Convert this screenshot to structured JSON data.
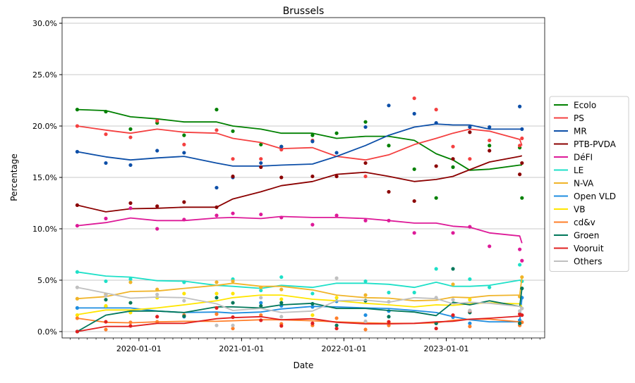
{
  "chart_data": {
    "type": "line",
    "title": "Brussels",
    "xlabel": "Date",
    "ylabel": "Percentage",
    "xlim": [
      "2019-04-02",
      "2023-12-18"
    ],
    "ylim": [
      -0.62,
      30.55
    ],
    "yticks": [
      0,
      5,
      10,
      15,
      20,
      25,
      30
    ],
    "ytick_labels": [
      "0.0%",
      "5.0%",
      "10.0%",
      "15.0%",
      "20.0%",
      "25.0%",
      "30.0%"
    ],
    "xticks": [
      "2020-01-01",
      "2021-01-01",
      "2022-01-01",
      "2023-01-01"
    ],
    "xtick_labels": [
      "2020-01-01",
      "2021-01-01",
      "2022-01-01",
      "2023-01-01"
    ],
    "grid": "horizontal",
    "legend_position": "right",
    "dates": [
      "2019-05-26",
      "2019-09-05",
      "2019-12-02",
      "2020-03-06",
      "2020-06-10",
      "2020-10-04",
      "2020-12-01",
      "2021-03-11",
      "2021-05-23",
      "2021-09-11",
      "2021-12-06",
      "2022-03-19",
      "2022-06-10",
      "2022-09-09",
      "2022-11-26",
      "2023-01-25",
      "2023-03-26",
      "2023-06-04",
      "2023-09-20",
      "2023-09-28"
    ],
    "series": [
      {
        "name": "Ecolo",
        "color": "#008000",
        "trend": [
          21.6,
          21.5,
          20.9,
          20.7,
          20.4,
          20.4,
          20.0,
          19.7,
          19.3,
          19.3,
          18.8,
          19.0,
          19.0,
          18.6,
          17.3,
          16.7,
          15.7,
          15.8,
          16.2,
          16.2
        ],
        "polls": [
          21.6,
          21.4,
          19.7,
          20.3,
          19.1,
          21.6,
          19.5,
          18.2,
          18.0,
          19.1,
          19.3,
          20.4,
          18.1,
          15.8,
          13.0,
          16.0,
          null,
          18.1,
          17.9,
          13.0
        ]
      },
      {
        "name": "PS",
        "color": "#f44040",
        "trend": [
          20.0,
          19.6,
          19.3,
          19.7,
          19.4,
          19.3,
          18.8,
          18.4,
          17.8,
          17.9,
          17.05,
          16.7,
          17.2,
          18.2,
          18.8,
          19.3,
          19.7,
          19.5,
          18.7,
          18.1
        ],
        "polls": [
          20.0,
          19.2,
          18.9,
          20.5,
          18.2,
          19.6,
          16.8,
          16.8,
          17.7,
          18.6,
          null,
          15.1,
          null,
          22.7,
          21.6,
          18.0,
          16.8,
          18.6,
          18.1,
          18.8
        ]
      },
      {
        "name": "MR",
        "color": "#0d4fa8",
        "trend": [
          17.5,
          17.0,
          16.7,
          16.9,
          17.05,
          16.4,
          16.1,
          16.1,
          16.2,
          16.3,
          17.05,
          18.1,
          19.1,
          19.9,
          20.2,
          20.1,
          20.1,
          19.7,
          19.7,
          19.7
        ],
        "polls": [
          17.5,
          16.4,
          16.2,
          17.6,
          17.4,
          14.0,
          15.0,
          16.4,
          18.0,
          18.5,
          17.4,
          19.9,
          22.0,
          21.2,
          20.3,
          null,
          19.9,
          19.9,
          21.9,
          19.7
        ]
      },
      {
        "name": "PTB-PVDA",
        "color": "#8b0000",
        "trend": [
          12.3,
          11.65,
          11.95,
          12.0,
          12.1,
          12.1,
          12.9,
          13.6,
          14.2,
          14.6,
          15.3,
          15.5,
          15.1,
          14.6,
          14.8,
          15.1,
          15.75,
          16.5,
          17.05,
          17.1
        ],
        "polls": [
          12.3,
          null,
          12.5,
          12.2,
          12.6,
          12.1,
          15.1,
          16.0,
          15.0,
          15.1,
          15.1,
          16.4,
          13.6,
          12.7,
          16.1,
          16.8,
          19.4,
          17.6,
          15.3,
          16.4
        ]
      },
      {
        "name": "DéFI",
        "color": "#dd1a98",
        "trend": [
          10.3,
          10.6,
          11.05,
          10.8,
          10.8,
          11.05,
          11.1,
          11.0,
          11.2,
          11.1,
          11.1,
          11.0,
          10.8,
          10.55,
          10.55,
          10.25,
          10.15,
          9.6,
          9.3,
          8.6
        ],
        "polls": [
          10.3,
          11.0,
          12.0,
          10.0,
          10.9,
          11.3,
          11.5,
          11.4,
          11.1,
          10.4,
          11.3,
          10.8,
          10.8,
          9.6,
          null,
          9.6,
          10.2,
          8.3,
          8.0,
          6.9
        ]
      },
      {
        "name": "LE",
        "color": "#1ee0c8",
        "trend": [
          5.8,
          5.4,
          5.3,
          4.95,
          4.9,
          4.5,
          4.4,
          4.2,
          4.5,
          4.3,
          4.7,
          4.7,
          4.6,
          4.3,
          4.8,
          4.4,
          4.4,
          4.5,
          5.0,
          5.0
        ],
        "polls": [
          5.8,
          4.9,
          5.1,
          null,
          4.8,
          null,
          5.1,
          4.0,
          5.3,
          3.7,
          null,
          4.9,
          3.8,
          3.8,
          6.1,
          null,
          5.1,
          4.3,
          6.5,
          4.9
        ]
      },
      {
        "name": "N-VA",
        "color": "#f0b429",
        "trend": [
          3.2,
          3.4,
          3.9,
          3.95,
          4.2,
          4.5,
          4.7,
          4.4,
          4.4,
          4.05,
          3.55,
          3.3,
          3.25,
          3.0,
          3.05,
          3.35,
          3.3,
          3.5,
          3.55,
          5.3
        ],
        "polls": [
          3.2,
          3.6,
          4.8,
          4.1,
          null,
          4.8,
          4.9,
          4.3,
          4.1,
          null,
          null,
          3.55,
          null,
          null,
          null,
          4.6,
          null,
          null,
          3.4,
          5.3
        ]
      },
      {
        "name": "Open VLD",
        "color": "#1f8ee0",
        "trend": [
          2.3,
          2.3,
          2.3,
          2.0,
          1.85,
          1.9,
          1.8,
          1.9,
          2.2,
          2.45,
          2.4,
          2.3,
          2.25,
          2.05,
          1.85,
          1.45,
          1.15,
          0.95,
          0.95,
          3.3
        ],
        "polls": [
          2.3,
          2.45,
          null,
          null,
          1.45,
          null,
          null,
          2.8,
          2.5,
          2.4,
          2.95,
          1.6,
          2.0,
          null,
          null,
          1.4,
          0.8,
          null,
          1.1,
          3.3
        ]
      },
      {
        "name": "VB",
        "color": "#ffe500",
        "trend": [
          1.65,
          2.1,
          2.1,
          2.3,
          2.6,
          3.0,
          3.3,
          3.55,
          3.55,
          3.15,
          3.0,
          2.75,
          2.6,
          2.4,
          2.6,
          2.55,
          2.7,
          2.8,
          2.7,
          2.4
        ],
        "polls": [
          1.6,
          2.5,
          1.85,
          3.3,
          3.7,
          3.7,
          3.7,
          null,
          3.15,
          1.6,
          3.3,
          null,
          null,
          null,
          null,
          null,
          3.1,
          null,
          null,
          null
        ]
      },
      {
        "name": "cd&v",
        "color": "#ff7f2a",
        "trend": [
          1.3,
          0.9,
          0.85,
          0.95,
          1.0,
          1.0,
          1.05,
          1.15,
          1.15,
          1.05,
          0.95,
          0.85,
          0.8,
          0.8,
          0.85,
          1.1,
          1.2,
          1.2,
          0.95,
          0.85
        ],
        "polls": [
          1.3,
          0.2,
          0.9,
          0.95,
          1.6,
          1.7,
          0.3,
          1.6,
          0.75,
          0.6,
          1.3,
          0.2,
          0.6,
          null,
          0.8,
          null,
          0.5,
          null,
          0.6,
          0.9
        ]
      },
      {
        "name": "Groen",
        "color": "#00775a",
        "trend": [
          0,
          1.6,
          2.0,
          2.0,
          1.85,
          2.4,
          2.4,
          2.3,
          2.6,
          2.75,
          2.25,
          2.25,
          2.05,
          1.9,
          1.55,
          2.85,
          2.6,
          3.0,
          2.45,
          4.2
        ],
        "polls": [
          0,
          3.1,
          2.8,
          null,
          1.5,
          3.3,
          2.8,
          2.5,
          2.8,
          2.7,
          0.6,
          3.0,
          1.45,
          null,
          0.8,
          6.1,
          1.85,
          null,
          0.8,
          4.2
        ]
      },
      {
        "name": "Vooruit",
        "color": "#e02020",
        "trend": [
          0,
          0.5,
          0.5,
          0.8,
          0.8,
          1.25,
          1.35,
          1.45,
          1.15,
          1.25,
          0.9,
          0.75,
          0.75,
          0.8,
          0.95,
          1.0,
          1.2,
          1.3,
          1.5,
          1.6
        ],
        "polls": [
          0,
          0.95,
          0.55,
          1.45,
          null,
          2.3,
          1.4,
          1.1,
          0.55,
          0.8,
          0.3,
          null,
          0.95,
          null,
          0.3,
          1.6,
          2.0,
          null,
          1.7,
          1.6
        ]
      },
      {
        "name": "Others",
        "color": "#c0c0c0",
        "trend": [
          4.3,
          3.75,
          3.25,
          3.35,
          3.3,
          2.7,
          2.05,
          2.25,
          1.85,
          2.0,
          3.0,
          3.05,
          2.85,
          3.3,
          3.2,
          2.7,
          2.85,
          2.75,
          2.45,
          2.1
        ],
        "polls": [
          4.3,
          3.5,
          null,
          3.6,
          3.0,
          0.6,
          0.6,
          3.3,
          1.45,
          null,
          5.2,
          1.0,
          2.9,
          null,
          3.3,
          3.1,
          2.05,
          null,
          2.0,
          2.25
        ]
      }
    ]
  }
}
